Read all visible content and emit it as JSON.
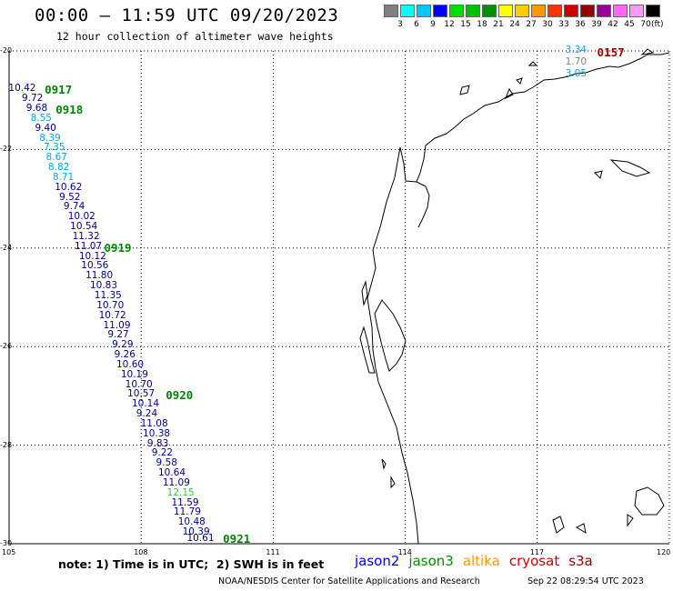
{
  "header": {
    "title": "00:00 – 11:59 UTC 09/20/2023",
    "subtitle": "12 hour collection of altimeter wave heights"
  },
  "color_scale": {
    "unit": "(ft)",
    "ticks": [
      "3",
      "6",
      "9",
      "12",
      "15",
      "18",
      "21",
      "24",
      "27",
      "30",
      "33",
      "36",
      "39",
      "42",
      "45",
      "70"
    ],
    "colors": [
      "#808080",
      "#00ffff",
      "#00c8ff",
      "#0000ff",
      "#00e000",
      "#00c000",
      "#009000",
      "#ffff00",
      "#ffcc00",
      "#ff9900",
      "#ff3300",
      "#cc0000",
      "#990000",
      "#990099",
      "#ff66ff",
      "#ff99ff",
      "#000000"
    ]
  },
  "axes": {
    "lat_labels": [
      "-20",
      "-22",
      "-24",
      "-26",
      "-28",
      "-30"
    ],
    "lon_labels": [
      "105",
      "108",
      "111",
      "114",
      "117",
      "120"
    ]
  },
  "chart_data": {
    "type": "scatter",
    "lon_range": [
      105,
      120
    ],
    "lat_range": [
      -30,
      -20
    ],
    "tracks": [
      {
        "satellite": "jason2",
        "color": "#00008b",
        "points": [
          {
            "lon": 105.05,
            "lat": -20.8,
            "swh": "10.42",
            "color": "#00008b"
          },
          {
            "lon": 105.35,
            "lat": -21.0,
            "swh": "9.72",
            "color": "#00008b"
          },
          {
            "lon": 105.45,
            "lat": -21.2,
            "swh": "9.68",
            "color": "#00008b"
          },
          {
            "lon": 105.55,
            "lat": -21.4,
            "swh": "8.55",
            "color": "#00aadd"
          },
          {
            "lon": 105.65,
            "lat": -21.6,
            "swh": "9.40",
            "color": "#00008b"
          },
          {
            "lon": 105.75,
            "lat": -21.8,
            "swh": "8.39",
            "color": "#00aadd"
          },
          {
            "lon": 105.85,
            "lat": -22.0,
            "swh": "7.35",
            "color": "#00aadd"
          },
          {
            "lon": 105.9,
            "lat": -22.2,
            "swh": "8.67",
            "color": "#00aadd"
          },
          {
            "lon": 105.95,
            "lat": -22.4,
            "swh": "8.82",
            "color": "#00aadd"
          },
          {
            "lon": 106.05,
            "lat": -22.6,
            "swh": "8.71",
            "color": "#00aadd"
          },
          {
            "lon": 106.1,
            "lat": -22.8,
            "swh": "10.62",
            "color": "#00008b"
          },
          {
            "lon": 106.2,
            "lat": -23.0,
            "swh": "9.52",
            "color": "#00008b"
          },
          {
            "lon": 106.3,
            "lat": -23.2,
            "swh": "9.74",
            "color": "#00008b"
          },
          {
            "lon": 106.4,
            "lat": -23.4,
            "swh": "10.02",
            "color": "#00008b"
          },
          {
            "lon": 106.45,
            "lat": -23.6,
            "swh": "10.54",
            "color": "#00008b"
          },
          {
            "lon": 106.5,
            "lat": -23.8,
            "swh": "11.32",
            "color": "#00008b"
          },
          {
            "lon": 106.55,
            "lat": -24.0,
            "swh": "11.07",
            "color": "#00008b"
          },
          {
            "lon": 106.65,
            "lat": -24.2,
            "swh": "10.12",
            "color": "#00008b"
          },
          {
            "lon": 106.7,
            "lat": -24.4,
            "swh": "10.56",
            "color": "#00008b"
          },
          {
            "lon": 106.8,
            "lat": -24.6,
            "swh": "11.80",
            "color": "#00008b"
          },
          {
            "lon": 106.9,
            "lat": -24.8,
            "swh": "10.83",
            "color": "#00008b"
          },
          {
            "lon": 107.0,
            "lat": -25.0,
            "swh": "11.35",
            "color": "#00008b"
          },
          {
            "lon": 107.05,
            "lat": -25.2,
            "swh": "10.70",
            "color": "#00008b"
          },
          {
            "lon": 107.1,
            "lat": -25.4,
            "swh": "10.72",
            "color": "#00008b"
          },
          {
            "lon": 107.2,
            "lat": -25.6,
            "swh": "11.09",
            "color": "#00008b"
          },
          {
            "lon": 107.3,
            "lat": -25.8,
            "swh": "9.27",
            "color": "#00008b"
          },
          {
            "lon": 107.4,
            "lat": -26.0,
            "swh": "9.29",
            "color": "#00008b"
          },
          {
            "lon": 107.45,
            "lat": -26.2,
            "swh": "9.26",
            "color": "#00008b"
          },
          {
            "lon": 107.5,
            "lat": -26.4,
            "swh": "10.60",
            "color": "#00008b"
          },
          {
            "lon": 107.6,
            "lat": -26.6,
            "swh": "10.19",
            "color": "#00008b"
          },
          {
            "lon": 107.7,
            "lat": -26.8,
            "swh": "10.70",
            "color": "#00008b"
          },
          {
            "lon": 107.75,
            "lat": -27.0,
            "swh": "10.57",
            "color": "#00008b"
          },
          {
            "lon": 107.85,
            "lat": -27.2,
            "swh": "10.14",
            "color": "#00008b"
          },
          {
            "lon": 107.95,
            "lat": -27.4,
            "swh": "9.24",
            "color": "#00008b"
          },
          {
            "lon": 108.05,
            "lat": -27.6,
            "swh": "11.08",
            "color": "#00008b"
          },
          {
            "lon": 108.1,
            "lat": -27.8,
            "swh": "10.38",
            "color": "#00008b"
          },
          {
            "lon": 108.2,
            "lat": -28.0,
            "swh": "9.83",
            "color": "#00008b"
          },
          {
            "lon": 108.3,
            "lat": -28.2,
            "swh": "9.22",
            "color": "#00008b"
          },
          {
            "lon": 108.4,
            "lat": -28.4,
            "swh": "9.58",
            "color": "#00008b"
          },
          {
            "lon": 108.45,
            "lat": -28.6,
            "swh": "10.64",
            "color": "#00008b"
          },
          {
            "lon": 108.55,
            "lat": -28.8,
            "swh": "11.09",
            "color": "#00008b"
          },
          {
            "lon": 108.65,
            "lat": -29.0,
            "swh": "12.15",
            "color": "#33cc33"
          },
          {
            "lon": 108.75,
            "lat": -29.2,
            "swh": "11.59",
            "color": "#00008b"
          },
          {
            "lon": 108.8,
            "lat": -29.4,
            "swh": "11.79",
            "color": "#00008b"
          },
          {
            "lon": 108.9,
            "lat": -29.6,
            "swh": "10.48",
            "color": "#00008b"
          },
          {
            "lon": 109.0,
            "lat": -29.8,
            "swh": "10.39",
            "color": "#00008b"
          },
          {
            "lon": 109.1,
            "lat": -30.0,
            "swh": "10.61",
            "color": "#00008b"
          }
        ],
        "time_labels": [
          {
            "text": "0917",
            "lon": 105.85,
            "lat": -20.8
          },
          {
            "text": "0918",
            "lon": 106.1,
            "lat": -21.2
          },
          {
            "text": "0919",
            "lon": 107.2,
            "lat": -24.0
          },
          {
            "text": "0920",
            "lon": 108.6,
            "lat": -27.0
          },
          {
            "text": "0921",
            "lon": 109.9,
            "lat": -30.0
          }
        ]
      },
      {
        "satellite": "cryosat",
        "color": "#990000",
        "points": [
          {
            "lon": 117.7,
            "lat": -20.0,
            "swh": "3.34",
            "color": "#00aadd"
          },
          {
            "lon": 117.7,
            "lat": -20.25,
            "swh": "1.70",
            "color": "#808080"
          },
          {
            "lon": 117.7,
            "lat": -20.5,
            "swh": "3.05",
            "color": "#00aadd"
          }
        ],
        "time_labels": [
          {
            "text": "0157",
            "lon": 118.4,
            "lat": -20.0
          }
        ]
      }
    ]
  },
  "note": "note: 1) Time is in UTC;  2) SWH is in feet",
  "legend": [
    {
      "label": "jason2",
      "color": "#0000ff"
    },
    {
      "label": "jason3",
      "color": "#009000"
    },
    {
      "label": "altika",
      "color": "#ff9900"
    },
    {
      "label": "cryosat",
      "color": "#cc0000"
    },
    {
      "label": "s3a",
      "color": "#990000"
    }
  ],
  "footer": {
    "left": "NOAA/NESDIS Center for Satellite Applications and Research",
    "right": "Sep 22 08:29:54 UTC 2023"
  }
}
